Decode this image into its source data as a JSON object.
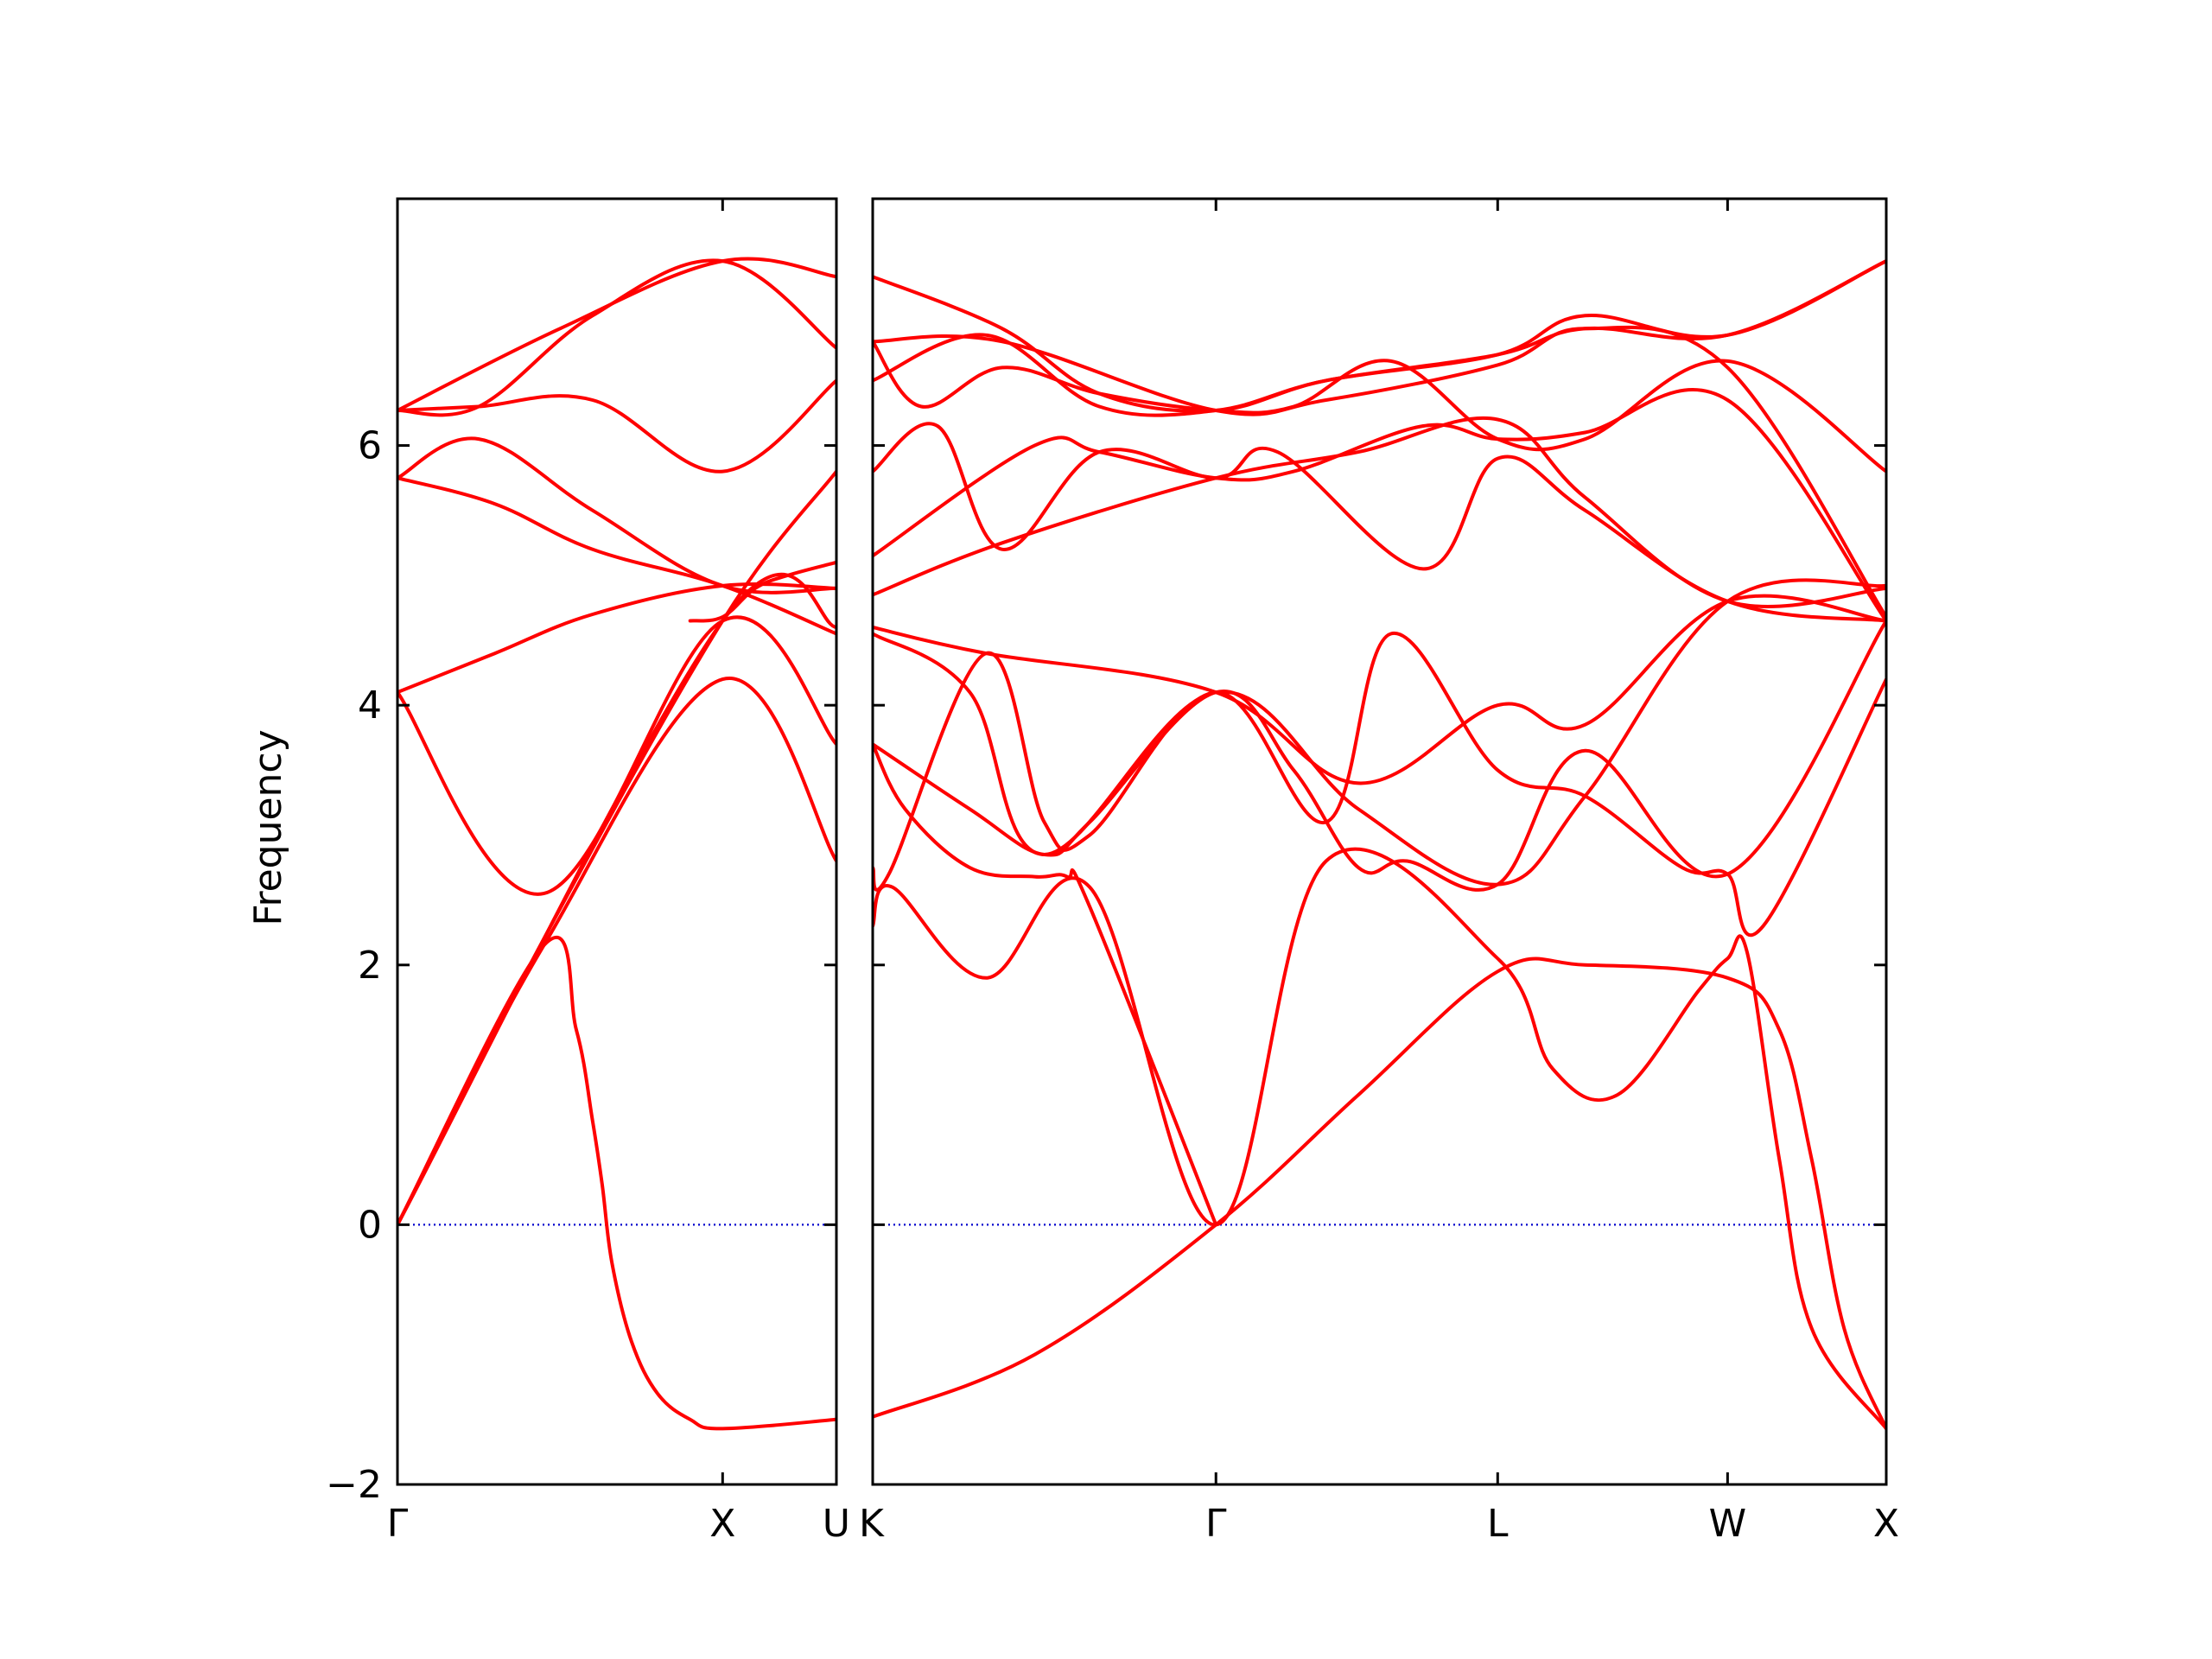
{
  "chart_data": {
    "type": "line",
    "ylabel": "Frequency",
    "ylim": [
      -2,
      7.9
    ],
    "yticks": [
      -2,
      0,
      2,
      4,
      6
    ],
    "ytick_labels": [
      "−2",
      "0",
      "2",
      "4",
      "6"
    ],
    "zero_line_color": "#0000cc",
    "band_color": "#ff0000",
    "grid": false,
    "panels": [
      {
        "xlim": [
          0,
          1.35
        ],
        "xticks": [
          0,
          1.0,
          1.35
        ],
        "xtick_labels": [
          "Γ",
          "X",
          "U"
        ],
        "series": [
          {
            "x": [
              0,
              0.45,
              1.0,
              1.35
            ],
            "values": [
              0,
              2.15,
              4.2,
              2.8
            ]
          },
          {
            "x": [
              0,
              0.45,
              0.55,
              0.6,
              0.63,
              0.66,
              0.72,
              0.8,
              0.9,
              1.0,
              1.35
            ],
            "values": [
              0,
              2.15,
              1.5,
              0.8,
              0.3,
              -0.3,
              -0.9,
              -1.3,
              -1.5,
              -1.57,
              -1.5
            ]
          },
          {
            "x": [
              0,
              0.45,
              1.0,
              1.35
            ],
            "values": [
              4.1,
              2.55,
              4.65,
              3.7
            ]
          },
          {
            "x": [
              0,
              0.45,
              1.0,
              1.35
            ],
            "values": [
              0,
              2.2,
              4.65,
              5.8
            ]
          },
          {
            "x": [
              0,
              0.3,
              0.6,
              1.0,
              1.35
            ],
            "values": [
              4.1,
              4.4,
              4.7,
              4.92,
              4.9
            ]
          },
          {
            "x": [
              0,
              0.3,
              0.6,
              1.0,
              1.35
            ],
            "values": [
              5.75,
              5.55,
              5.2,
              4.92,
              4.55
            ]
          },
          {
            "x": [
              0,
              0.25,
              0.6,
              1.0,
              1.35
            ],
            "values": [
              5.75,
              6.05,
              5.5,
              4.92,
              4.9
            ]
          },
          {
            "x": [
              0,
              0.25,
              0.6,
              1.0,
              1.35
            ],
            "values": [
              6.27,
              6.3,
              6.35,
              5.8,
              6.5
            ]
          },
          {
            "x": [
              0,
              0.25,
              0.6,
              1.0,
              1.35
            ],
            "values": [
              6.27,
              6.3,
              7.0,
              7.42,
              6.75
            ]
          },
          {
            "x": [
              0,
              0.5,
              1.0,
              1.35
            ],
            "values": [
              6.27,
              6.9,
              7.42,
              7.3
            ]
          },
          {
            "x": [
              0,
              1.0,
              1.35
            ],
            "values": [
              0,
              4.65,
              4.6
            ]
          },
          {
            "x": [
              0.9,
              1.0,
              1.1,
              1.2,
              1.35
            ],
            "values": [
              4.65,
              4.68,
              4.9,
              5.0,
              5.1
            ]
          }
        ]
      },
      {
        "xlim": [
          0,
          3.13
        ],
        "xticks": [
          0,
          1.06,
          1.93,
          2.64,
          3.13
        ],
        "xtick_labels": [
          "K",
          "Γ",
          "L",
          "W",
          "X"
        ],
        "series": [
          {
            "x": [
              0,
              0.5,
              1.06,
              1.5,
              1.93,
              2.2,
              2.64,
              2.8,
              2.9,
              3.0,
              3.13
            ],
            "values": [
              -1.48,
              -1.0,
              0,
              1.0,
              1.95,
              2.0,
              1.9,
              1.5,
              0.5,
              -0.8,
              -1.57
            ]
          },
          {
            "x": [
              0,
              0.06,
              0.35,
              0.67,
              1.06,
              1.4,
              1.93,
              2.1,
              2.3,
              2.55,
              2.64,
              2.7,
              2.8,
              2.9,
              3.13
            ],
            "values": [
              2.3,
              2.6,
              1.9,
              2.6,
              0,
              2.8,
              2.05,
              1.2,
              1.0,
              1.8,
              2.05,
              2.1,
              0.5,
              -0.8,
              -1.57
            ]
          },
          {
            "x": [
              0,
              0.1,
              0.3,
              0.5,
              0.6,
              0.67,
              1.06
            ],
            "values": [
              3.7,
              3.2,
              2.75,
              2.68,
              2.68,
              2.45,
              0
            ]
          },
          {
            "x": [
              0,
              0.05,
              0.35,
              0.53,
              0.67,
              1.06,
              1.4,
              1.6,
              1.93,
              2.2,
              2.5,
              2.64,
              2.75,
              3.13
            ],
            "values": [
              2.75,
              2.7,
              4.4,
              3.1,
              3.0,
              4.1,
              3.1,
              4.55,
              3.5,
              3.3,
              2.75,
              2.7,
              2.3,
              4.2
            ]
          },
          {
            "x": [
              0,
              0.3,
              0.53,
              0.67,
              1.06,
              1.3,
              1.5,
              1.65,
              1.93,
              2.2,
              2.64,
              3.13
            ],
            "values": [
              3.7,
              3.2,
              2.85,
              3.1,
              4.1,
              3.5,
              2.75,
              2.8,
              2.62,
              3.65,
              2.7,
              4.65
            ]
          },
          {
            "x": [
              0,
              0.3,
              0.53,
              1.06,
              1.5,
              1.93,
              2.2,
              2.64,
              3.13
            ],
            "values": [
              4.55,
              4.1,
              2.85,
              4.1,
              3.2,
              2.62,
              3.3,
              4.8,
              4.92
            ]
          },
          {
            "x": [
              0,
              0.35,
              1.06,
              1.5,
              1.93,
              2.2,
              2.64,
              3.13
            ],
            "values": [
              4.6,
              4.4,
              4.1,
              3.4,
              4.0,
              3.85,
              4.8,
              4.65
            ]
          },
          {
            "x": [
              0,
              0.4,
              1.06,
              1.5,
              1.93,
              2.2,
              2.64,
              3.13
            ],
            "values": [
              4.85,
              5.25,
              5.75,
              5.95,
              6.2,
              5.6,
              4.8,
              4.9
            ]
          },
          {
            "x": [
              0,
              0.2,
              0.4,
              0.7,
              1.06,
              1.25,
              1.7,
              1.93,
              2.2,
              2.64,
              3.13
            ],
            "values": [
              5.8,
              6.15,
              5.2,
              5.95,
              5.75,
              5.95,
              5.05,
              5.9,
              5.5,
              4.8,
              4.65
            ]
          },
          {
            "x": [
              0,
              0.5,
              0.7,
              1.06,
              1.3,
              1.7,
              1.93,
              2.2,
              2.64,
              3.13
            ],
            "values": [
              5.15,
              6.0,
              5.95,
              5.75,
              5.8,
              6.15,
              6.05,
              6.1,
              6.35,
              4.65
            ]
          },
          {
            "x": [
              0,
              0.15,
              0.4,
              0.7,
              1.06,
              1.3,
              1.6,
              1.93,
              2.2,
              2.64,
              3.13
            ],
            "values": [
              6.8,
              6.3,
              6.6,
              6.4,
              6.27,
              6.3,
              6.65,
              6.05,
              6.05,
              6.65,
              5.8
            ]
          },
          {
            "x": [
              0,
              0.35,
              0.7,
              1.06,
              1.4,
              1.93,
              2.2,
              2.64,
              3.13
            ],
            "values": [
              6.5,
              6.85,
              6.3,
              6.27,
              6.5,
              6.7,
              6.9,
              6.85,
              7.42
            ]
          },
          {
            "x": [
              0,
              0.4,
              0.7,
              1.06,
              1.4,
              1.93,
              2.2,
              2.64,
              3.13
            ],
            "values": [
              7.3,
              6.9,
              6.4,
              6.27,
              6.5,
              6.7,
              7.0,
              6.85,
              7.42
            ]
          },
          {
            "x": [
              0,
              0.4,
              1.06,
              1.4,
              1.93,
              2.2,
              2.64,
              3.13
            ],
            "values": [
              6.8,
              6.8,
              6.27,
              6.35,
              6.62,
              6.9,
              6.6,
              4.68
            ]
          }
        ]
      }
    ]
  }
}
